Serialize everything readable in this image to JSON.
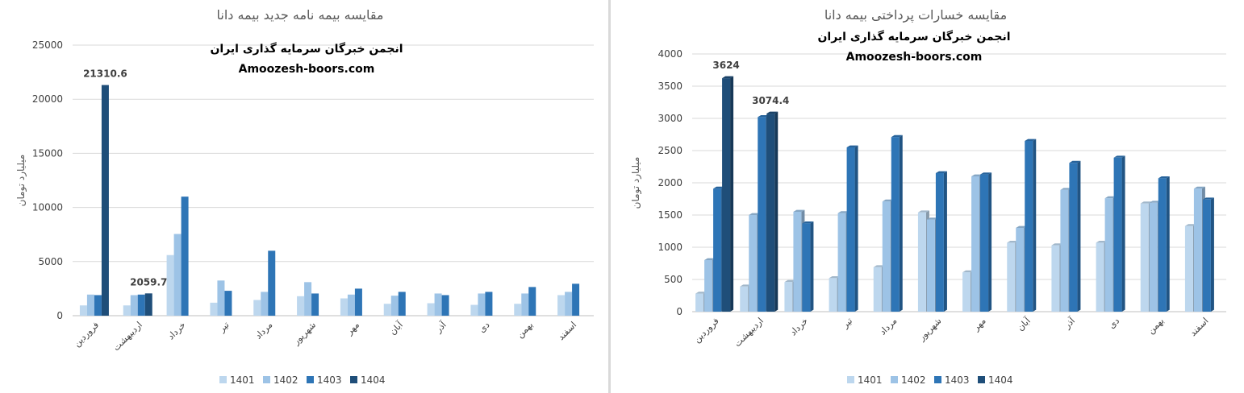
{
  "legend_colors": {
    "1401": "#bdd7ee",
    "1402": "#9dc3e6",
    "1403": "#2e75b6",
    "1404": "#1f4e79"
  },
  "chart_data": [
    {
      "type": "bar",
      "title": "مقایسه بیمه نامه جدید بیمه دانا",
      "ylabel": "میلیارد تومان",
      "xlabel": "",
      "ylim": [
        0,
        25000
      ],
      "yticks": [
        0,
        5000,
        10000,
        15000,
        20000,
        25000
      ],
      "grid": true,
      "legend_position": "bottom",
      "categories": [
        "فروردین",
        "اردیبهشت",
        "خرداد",
        "تیر",
        "مرداد",
        "شهریور",
        "مهر",
        "آبان",
        "آذر",
        "دی",
        "بهمن",
        "اسفند"
      ],
      "series": [
        {
          "name": "1401",
          "color": "#bdd7ee",
          "values": [
            950,
            950,
            5600,
            1200,
            1450,
            1800,
            1600,
            1100,
            1150,
            1000,
            1100,
            1900
          ]
        },
        {
          "name": "1402",
          "color": "#9dc3e6",
          "values": [
            1950,
            1900,
            7550,
            3250,
            2200,
            3100,
            1950,
            1850,
            2050,
            2050,
            2050,
            2200
          ]
        },
        {
          "name": "1403",
          "color": "#2e75b6",
          "values": [
            1900,
            1950,
            11000,
            2300,
            6000,
            2050,
            2500,
            2200,
            1900,
            2200,
            2650,
            2950
          ]
        },
        {
          "name": "1404",
          "color": "#1f4e79",
          "values": [
            21310.6,
            2059.7,
            null,
            null,
            null,
            null,
            null,
            null,
            null,
            null,
            null,
            null
          ]
        }
      ],
      "data_labels": [
        {
          "category_index": 0,
          "series": "1404",
          "text": "21310.6"
        },
        {
          "category_index": 1,
          "series": "1404",
          "text": "2059.7"
        }
      ],
      "watermark": {
        "line1": "انجمن خبرگان سرمایه گذاری ایران",
        "line2": "Amoozesh-boors.com"
      }
    },
    {
      "type": "bar",
      "title": "مقایسه خسارات پرداختی بیمه دانا",
      "ylabel": "میلیارد تومان",
      "xlabel": "",
      "ylim": [
        0,
        4000
      ],
      "yticks": [
        0,
        500,
        1000,
        1500,
        2000,
        2500,
        3000,
        3500,
        4000
      ],
      "grid": true,
      "style": "3d",
      "legend_position": "bottom",
      "categories": [
        "فروردین",
        "اردیبهشت",
        "خرداد",
        "تیر",
        "مرداد",
        "شهریور",
        "مهر",
        "آبان",
        "آذر",
        "دی",
        "بهمن",
        "اسفند"
      ],
      "series": [
        {
          "name": "1401",
          "color": "#bdd7ee",
          "values": [
            280,
            390,
            460,
            520,
            690,
            1540,
            610,
            1070,
            1030,
            1070,
            1680,
            1330
          ]
        },
        {
          "name": "1402",
          "color": "#9dc3e6",
          "values": [
            800,
            1500,
            1550,
            1530,
            1710,
            1430,
            2100,
            1300,
            1890,
            1760,
            1690,
            1910
          ]
        },
        {
          "name": "1403",
          "color": "#2e75b6",
          "values": [
            1910,
            3020,
            1370,
            2550,
            2710,
            2150,
            2130,
            2650,
            2310,
            2390,
            2070,
            1740
          ]
        },
        {
          "name": "1404",
          "color": "#1f4e79",
          "values": [
            3624,
            3074.4,
            null,
            null,
            null,
            null,
            null,
            null,
            null,
            null,
            null,
            null
          ]
        }
      ],
      "data_labels": [
        {
          "category_index": 0,
          "series": "1404",
          "text": "3624"
        },
        {
          "category_index": 1,
          "series": "1404",
          "text": "3074.4"
        }
      ],
      "watermark": {
        "line1": "انجمن خبرگان سرمایه گذاری ایران",
        "line2": "Amoozesh-boors.com"
      }
    }
  ]
}
